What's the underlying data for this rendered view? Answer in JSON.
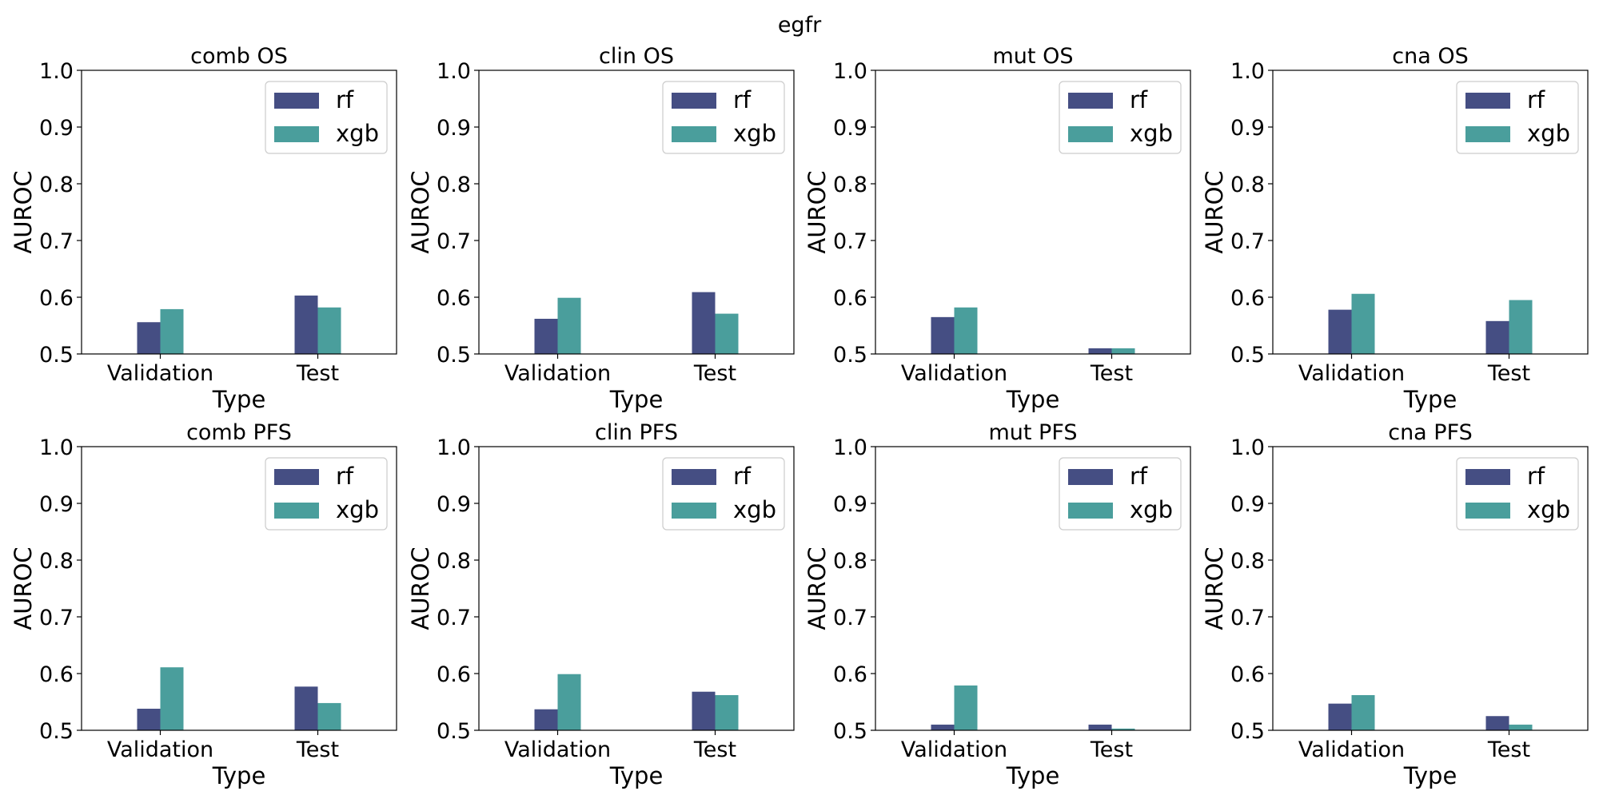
{
  "figure_title": "egfr",
  "colors": {
    "rf": "#454e83",
    "xgb": "#4a9e9c"
  },
  "chart_data": [
    {
      "type": "bar",
      "title": "comb OS",
      "xlabel": "Type",
      "ylabel": "AUROC",
      "ylim": [
        0.5,
        1.0
      ],
      "yticks": [
        "0.5",
        "0.6",
        "0.7",
        "0.8",
        "0.9",
        "1.0"
      ],
      "categories": [
        "Validation",
        "Test"
      ],
      "legend_position": "upper-right",
      "series": [
        {
          "name": "rf",
          "values": [
            0.556,
            0.603
          ]
        },
        {
          "name": "xgb",
          "values": [
            0.579,
            0.582
          ]
        }
      ]
    },
    {
      "type": "bar",
      "title": "clin OS",
      "xlabel": "Type",
      "ylabel": "AUROC",
      "ylim": [
        0.5,
        1.0
      ],
      "yticks": [
        "0.5",
        "0.6",
        "0.7",
        "0.8",
        "0.9",
        "1.0"
      ],
      "categories": [
        "Validation",
        "Test"
      ],
      "legend_position": "upper-right",
      "series": [
        {
          "name": "rf",
          "values": [
            0.562,
            0.609
          ]
        },
        {
          "name": "xgb",
          "values": [
            0.599,
            0.571
          ]
        }
      ]
    },
    {
      "type": "bar",
      "title": "mut OS",
      "xlabel": "Type",
      "ylabel": "AUROC",
      "ylim": [
        0.5,
        1.0
      ],
      "yticks": [
        "0.5",
        "0.6",
        "0.7",
        "0.8",
        "0.9",
        "1.0"
      ],
      "categories": [
        "Validation",
        "Test"
      ],
      "legend_position": "upper-right",
      "series": [
        {
          "name": "rf",
          "values": [
            0.565,
            0.51
          ]
        },
        {
          "name": "xgb",
          "values": [
            0.582,
            0.51
          ]
        }
      ]
    },
    {
      "type": "bar",
      "title": "cna OS",
      "xlabel": "Type",
      "ylabel": "AUROC",
      "ylim": [
        0.5,
        1.0
      ],
      "yticks": [
        "0.5",
        "0.6",
        "0.7",
        "0.8",
        "0.9",
        "1.0"
      ],
      "categories": [
        "Validation",
        "Test"
      ],
      "legend_position": "upper-right",
      "series": [
        {
          "name": "rf",
          "values": [
            0.578,
            0.558
          ]
        },
        {
          "name": "xgb",
          "values": [
            0.606,
            0.595
          ]
        }
      ]
    },
    {
      "type": "bar",
      "title": "comb PFS",
      "xlabel": "Type",
      "ylabel": "AUROC",
      "ylim": [
        0.5,
        1.0
      ],
      "yticks": [
        "0.5",
        "0.6",
        "0.7",
        "0.8",
        "0.9",
        "1.0"
      ],
      "categories": [
        "Validation",
        "Test"
      ],
      "legend_position": "upper-right",
      "series": [
        {
          "name": "rf",
          "values": [
            0.538,
            0.577
          ]
        },
        {
          "name": "xgb",
          "values": [
            0.611,
            0.548
          ]
        }
      ]
    },
    {
      "type": "bar",
      "title": "clin PFS",
      "xlabel": "Type",
      "ylabel": "AUROC",
      "ylim": [
        0.5,
        1.0
      ],
      "yticks": [
        "0.5",
        "0.6",
        "0.7",
        "0.8",
        "0.9",
        "1.0"
      ],
      "categories": [
        "Validation",
        "Test"
      ],
      "legend_position": "upper-right",
      "series": [
        {
          "name": "rf",
          "values": [
            0.537,
            0.568
          ]
        },
        {
          "name": "xgb",
          "values": [
            0.599,
            0.562
          ]
        }
      ]
    },
    {
      "type": "bar",
      "title": "mut PFS",
      "xlabel": "Type",
      "ylabel": "AUROC",
      "ylim": [
        0.5,
        1.0
      ],
      "yticks": [
        "0.5",
        "0.6",
        "0.7",
        "0.8",
        "0.9",
        "1.0"
      ],
      "categories": [
        "Validation",
        "Test"
      ],
      "legend_position": "upper-right",
      "series": [
        {
          "name": "rf",
          "values": [
            0.51,
            0.51
          ]
        },
        {
          "name": "xgb",
          "values": [
            0.579,
            0.503
          ]
        }
      ]
    },
    {
      "type": "bar",
      "title": "cna PFS",
      "xlabel": "Type",
      "ylabel": "AUROC",
      "ylim": [
        0.5,
        1.0
      ],
      "yticks": [
        "0.5",
        "0.6",
        "0.7",
        "0.8",
        "0.9",
        "1.0"
      ],
      "categories": [
        "Validation",
        "Test"
      ],
      "legend_position": "upper-right",
      "series": [
        {
          "name": "rf",
          "values": [
            0.547,
            0.525
          ]
        },
        {
          "name": "xgb",
          "values": [
            0.562,
            0.51
          ]
        }
      ]
    }
  ]
}
